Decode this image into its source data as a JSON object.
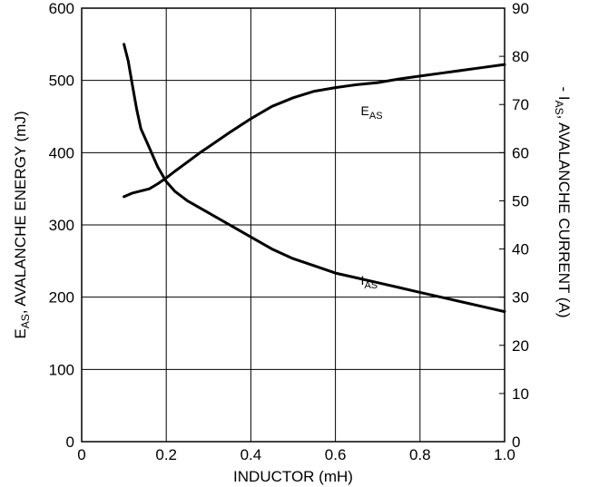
{
  "chart_data": {
    "type": "line",
    "title": "",
    "xlabel": "INDUCTOR (mH)",
    "ylabel_left": {
      "main": "E",
      "sub": "AS",
      "rest": ", AVALANCHE ENERGY (mJ)"
    },
    "ylabel_right": {
      "pre": "- I",
      "sub": "AS",
      "rest": ", AVALANCHE CURRENT (A)"
    },
    "xlim": [
      0,
      1.0
    ],
    "ylim_left": [
      0,
      600
    ],
    "ylim_right": [
      0,
      90
    ],
    "x_ticks": [
      "0",
      "0.2",
      "0.4",
      "0.6",
      "0.8",
      "1.0"
    ],
    "y_left_ticks": [
      "0",
      "100",
      "200",
      "300",
      "400",
      "500",
      "600"
    ],
    "y_right_ticks": [
      "0",
      "10",
      "20",
      "30",
      "40",
      "50",
      "60",
      "70",
      "80",
      "90"
    ],
    "grid": true,
    "series": [
      {
        "name": "EAS",
        "label_main": "E",
        "label_sub": "AS",
        "axis": "left",
        "x": [
          0.1,
          0.12,
          0.14,
          0.16,
          0.18,
          0.2,
          0.22,
          0.25,
          0.28,
          0.3,
          0.35,
          0.4,
          0.45,
          0.5,
          0.55,
          0.6,
          0.65,
          0.7,
          0.75,
          0.8,
          0.85,
          0.9,
          0.95,
          1.0
        ],
        "values": [
          339,
          344,
          347,
          350,
          357,
          365,
          374,
          387,
          400,
          408,
          428,
          447,
          464,
          476,
          485,
          490,
          494,
          497,
          502,
          506,
          510,
          514,
          518,
          522
        ]
      },
      {
        "name": "IAS",
        "label_main": "I",
        "label_sub": "AS",
        "axis": "right",
        "x": [
          0.1,
          0.11,
          0.12,
          0.13,
          0.14,
          0.16,
          0.18,
          0.2,
          0.22,
          0.25,
          0.3,
          0.35,
          0.4,
          0.45,
          0.5,
          0.55,
          0.6,
          0.65,
          0.7,
          0.75,
          0.8,
          0.85,
          0.9,
          0.95,
          1.0
        ],
        "values": [
          82.5,
          79,
          74,
          69,
          65,
          61,
          57,
          54,
          52,
          50,
          47.5,
          45,
          42.5,
          40,
          38,
          36.5,
          35,
          34,
          33,
          32,
          31,
          30,
          29,
          28,
          27
        ]
      }
    ],
    "series_label_positions": [
      {
        "series": "EAS",
        "x": 0.66,
        "y_left": 452
      },
      {
        "series": "IAS",
        "x": 0.66,
        "y_left": 217
      }
    ]
  }
}
